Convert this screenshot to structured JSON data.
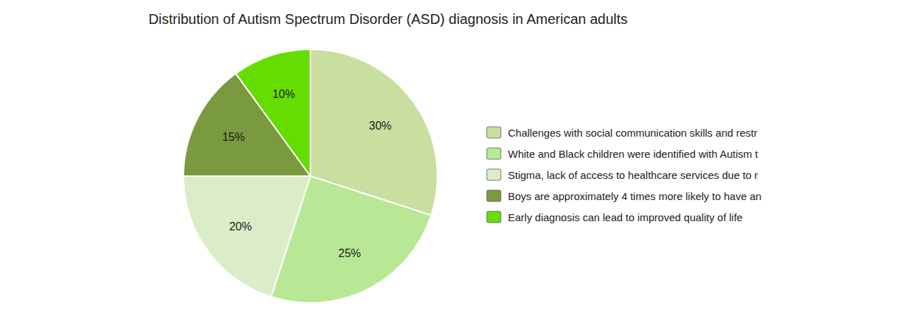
{
  "chart_data": {
    "type": "pie",
    "title": "Distribution of Autism Spectrum Disorder (ASD) diagnosis in American adults",
    "categories": [
      "Challenges with social communication skills and restr",
      "White and Black children were identified with Autism t",
      "Stigma, lack of access to healthcare services due to r",
      "Boys are approximately 4 times more likely to have an",
      "Early diagnosis can lead to improved quality of life"
    ],
    "values": [
      30,
      25,
      20,
      15,
      10
    ],
    "value_labels": [
      "30%",
      "25%",
      "20%",
      "15%",
      "10%"
    ],
    "data_labels": true,
    "colors": [
      "#c8dfa0",
      "#b8e896",
      "#daecc8",
      "#7a9a40",
      "#66dd00"
    ],
    "legend": "right"
  }
}
